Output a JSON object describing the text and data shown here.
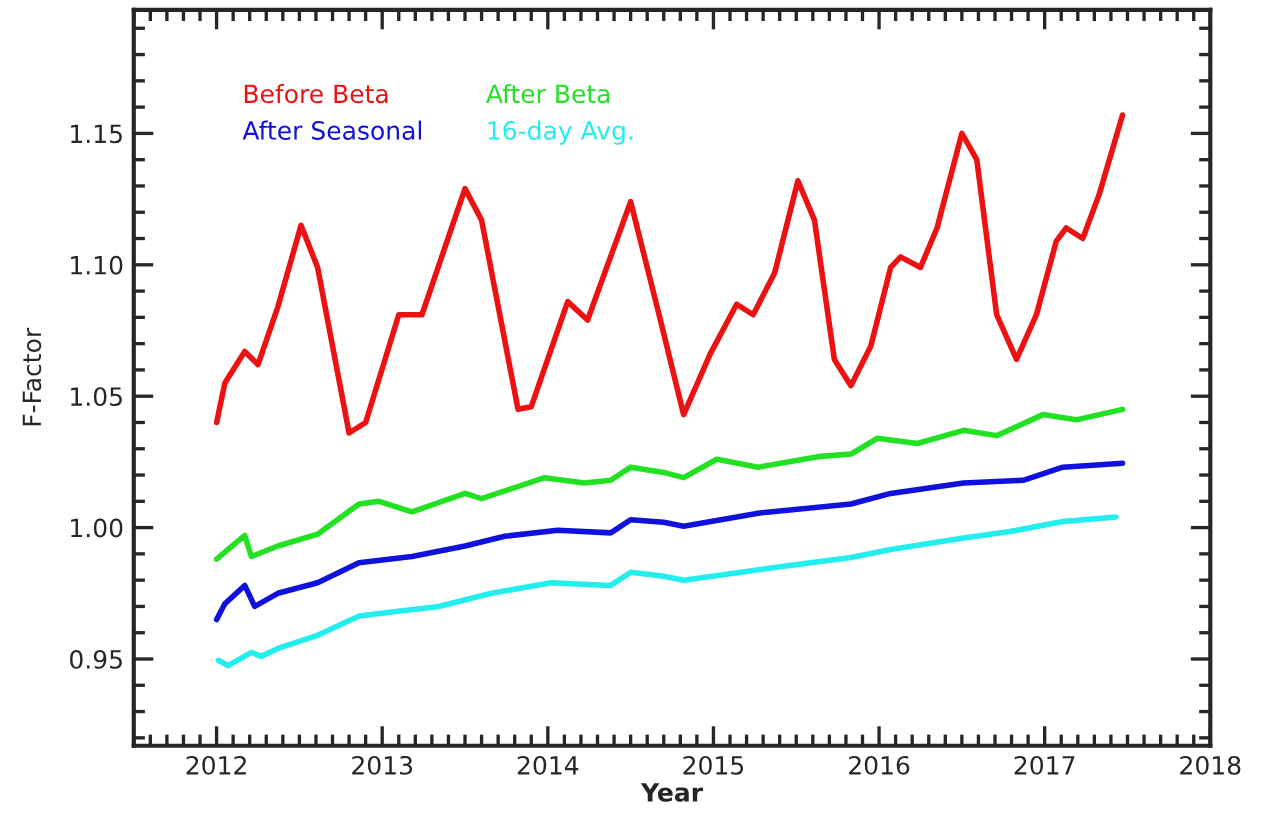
{
  "chart_data": {
    "type": "line",
    "xlabel": "Year",
    "ylabel": "F-Factor",
    "xlim": [
      2011.5,
      2018
    ],
    "xticks": [
      2012,
      2013,
      2014,
      2015,
      2016,
      2017,
      2018
    ],
    "ylim": [
      0.917,
      1.197
    ],
    "yticks": [
      {
        "value": 0.95,
        "label": "0.95"
      },
      {
        "value": 1.0,
        "label": "1.00"
      },
      {
        "value": 1.05,
        "label": "1.05"
      },
      {
        "value": 1.1,
        "label": "1.10"
      },
      {
        "value": 1.15,
        "label": "1.15"
      }
    ],
    "legend": "top left",
    "grid": false,
    "marker": "none",
    "line_style": "solid",
    "series": [
      {
        "name": "Before Beta",
        "color": "#ee1111",
        "x": [
          2012.0,
          2012.05,
          2012.17,
          2012.25,
          2012.37,
          2012.51,
          2012.61,
          2012.8,
          2012.9,
          2013.1,
          2013.24,
          2013.5,
          2013.6,
          2013.82,
          2013.9,
          2014.12,
          2014.24,
          2014.5,
          2014.66,
          2014.82,
          2014.98,
          2015.14,
          2015.24,
          2015.37,
          2015.51,
          2015.61,
          2015.73,
          2015.83,
          2015.95,
          2016.07,
          2016.13,
          2016.25,
          2016.35,
          2016.5,
          2016.59,
          2016.71,
          2016.83,
          2016.95,
          2017.07,
          2017.13,
          2017.23,
          2017.33,
          2017.47
        ],
        "values": [
          1.04,
          1.055,
          1.067,
          1.062,
          1.084,
          1.115,
          1.099,
          1.036,
          1.04,
          1.081,
          1.081,
          1.129,
          1.117,
          1.045,
          1.046,
          1.086,
          1.079,
          1.124,
          1.084,
          1.043,
          1.066,
          1.085,
          1.081,
          1.097,
          1.132,
          1.117,
          1.064,
          1.054,
          1.069,
          1.099,
          1.103,
          1.099,
          1.114,
          1.15,
          1.14,
          1.081,
          1.064,
          1.081,
          1.109,
          1.114,
          1.11,
          1.127,
          1.157
        ]
      },
      {
        "name": "After Beta",
        "color": "#22e022",
        "x": [
          2012.0,
          2012.17,
          2012.21,
          2012.37,
          2012.61,
          2012.86,
          2012.98,
          2013.18,
          2013.5,
          2013.6,
          2013.98,
          2014.22,
          2014.38,
          2014.5,
          2014.7,
          2014.82,
          2015.02,
          2015.27,
          2015.63,
          2015.83,
          2015.99,
          2016.23,
          2016.51,
          2016.71,
          2016.99,
          2017.19,
          2017.47
        ],
        "values": [
          0.988,
          0.997,
          0.989,
          0.993,
          0.9975,
          1.009,
          1.01,
          1.006,
          1.013,
          1.011,
          1.019,
          1.017,
          1.018,
          1.023,
          1.021,
          1.019,
          1.026,
          1.023,
          1.027,
          1.028,
          1.034,
          1.032,
          1.037,
          1.035,
          1.043,
          1.041,
          1.045
        ]
      },
      {
        "name": "After Seasonal",
        "color": "#1111dd",
        "x": [
          2012.0,
          2012.05,
          2012.17,
          2012.23,
          2012.37,
          2012.61,
          2012.86,
          2013.18,
          2013.5,
          2013.74,
          2014.06,
          2014.38,
          2014.5,
          2014.7,
          2014.82,
          2015.27,
          2015.83,
          2016.07,
          2016.51,
          2016.87,
          2017.11,
          2017.47
        ],
        "values": [
          0.965,
          0.971,
          0.978,
          0.97,
          0.975,
          0.979,
          0.9866,
          0.989,
          0.993,
          0.9967,
          0.999,
          0.998,
          1.003,
          1.002,
          1.0005,
          1.0055,
          1.009,
          1.013,
          1.017,
          1.018,
          1.023,
          1.0245
        ]
      },
      {
        "name": "16-day Avg.",
        "color": "#22eeee",
        "x": [
          2012.01,
          2012.07,
          2012.21,
          2012.27,
          2012.37,
          2012.61,
          2012.86,
          2013.02,
          2013.34,
          2013.66,
          2014.02,
          2014.38,
          2014.5,
          2014.7,
          2014.82,
          2015.39,
          2015.83,
          2016.07,
          2016.51,
          2016.79,
          2017.11,
          2017.43
        ],
        "values": [
          0.9495,
          0.9475,
          0.9525,
          0.951,
          0.954,
          0.959,
          0.9664,
          0.9676,
          0.97,
          0.975,
          0.979,
          0.978,
          0.983,
          0.9815,
          0.98,
          0.985,
          0.9886,
          0.9917,
          0.996,
          0.9985,
          1.0023,
          1.004
        ]
      }
    ]
  }
}
